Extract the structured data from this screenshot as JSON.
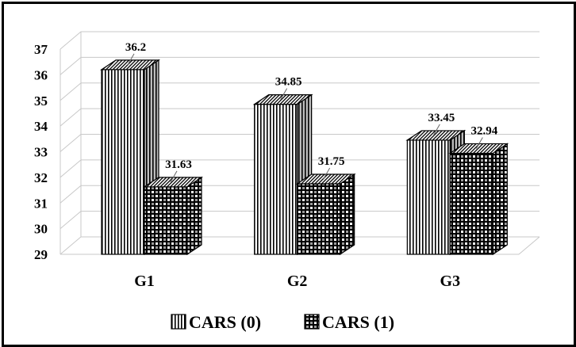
{
  "chart_data": {
    "type": "bar",
    "style": "3d-clustered-column",
    "categories": [
      "G1",
      "G2",
      "G3"
    ],
    "series": [
      {
        "name": "CARS (0)",
        "values": [
          36.2,
          34.85,
          33.45
        ],
        "value_labels": [
          "36.2",
          "34.85",
          "33.45"
        ],
        "pattern": "vertical-stripes"
      },
      {
        "name": "CARS (1)",
        "values": [
          31.63,
          31.75,
          32.94
        ],
        "value_labels": [
          "31.63",
          "31.75",
          "32.94"
        ],
        "pattern": "checkered"
      }
    ],
    "y_ticks": [
      "29",
      "30",
      "31",
      "32",
      "33",
      "34",
      "35",
      "36",
      "37"
    ],
    "ylim": [
      29,
      37
    ],
    "title": "",
    "xlabel": "",
    "ylabel": "",
    "grid": true,
    "legend_position": "bottom",
    "colors": {
      "bar": "#ffffff",
      "ink": "#000000",
      "grid": "#c8c8c8"
    }
  }
}
